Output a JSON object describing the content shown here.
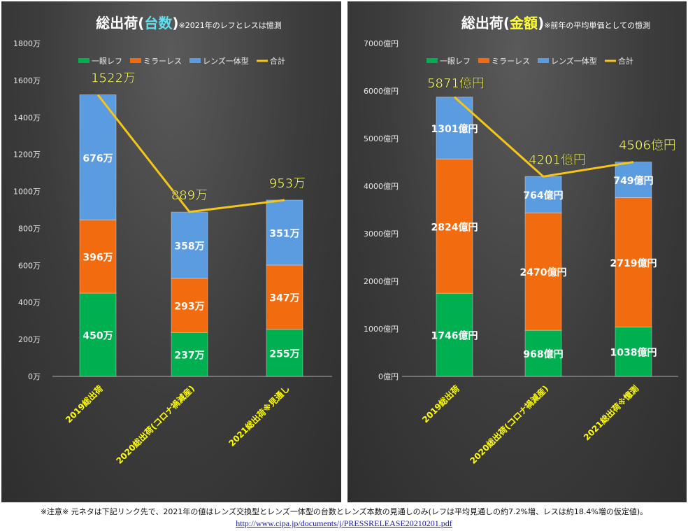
{
  "chart_data": [
    {
      "type": "bar",
      "stacked": true,
      "title": "総出荷(台数)",
      "title_highlight": "台数",
      "subtitle": "※2021年のレフとレスは憶測",
      "unit": "万",
      "categories": [
        "2019総出荷",
        "2020総出荷(コロナ禍減産)",
        "2021総出荷※見通し"
      ],
      "series": [
        {
          "name": "一眼レフ",
          "color": "#00b050",
          "values": [
            450,
            237,
            255
          ]
        },
        {
          "name": "ミラーレス",
          "color": "#f26b0f",
          "values": [
            396,
            293,
            347
          ]
        },
        {
          "name": "レンズ一体型",
          "color": "#5b9be0",
          "values": [
            676,
            358,
            351
          ]
        }
      ],
      "total": {
        "name": "合計",
        "color": "#f5c518",
        "values": [
          1522,
          889,
          953
        ]
      },
      "ylim": [
        0,
        1800
      ],
      "yticks": [
        "0万",
        "200万",
        "400万",
        "600万",
        "800万",
        "1000万",
        "1200万",
        "1400万",
        "1600万",
        "1800万"
      ],
      "grid": false,
      "legend": "top"
    },
    {
      "type": "bar",
      "stacked": true,
      "title": "総出荷(金額)",
      "title_highlight": "金額",
      "subtitle": "※前年の平均単価としての憶測",
      "unit": "億円",
      "categories": [
        "2019総出荷",
        "2020総出荷(コロナ禍減産)",
        "2021総出荷※憶測"
      ],
      "series": [
        {
          "name": "一眼レフ",
          "color": "#00b050",
          "values": [
            1746,
            968,
            1038
          ]
        },
        {
          "name": "ミラーレス",
          "color": "#f26b0f",
          "values": [
            2824,
            2470,
            2719
          ]
        },
        {
          "name": "レンズ一体型",
          "color": "#5b9be0",
          "values": [
            1301,
            764,
            749
          ]
        }
      ],
      "total": {
        "name": "合計",
        "color": "#f5c518",
        "values": [
          5871,
          4201,
          4506
        ]
      },
      "ylim": [
        0,
        7000
      ],
      "yticks": [
        "0億円",
        "1000億円",
        "2000億円",
        "3000億円",
        "4000億円",
        "5000億円",
        "6000億円",
        "7000億円"
      ],
      "grid": false,
      "legend": "top"
    }
  ],
  "footer": {
    "note": "※注意※ 元ネタは下記リンク先で、2021年の値はレンズ交換型とレンズ一体型の台数とレンズ本数の見通しのみ(レフは平均見通しの約7.2%増、レスは約18.4%増の仮定値)。",
    "link": "http://www.cipa.jp/documents/j/PRESSRELEASE20210201.pdf"
  }
}
